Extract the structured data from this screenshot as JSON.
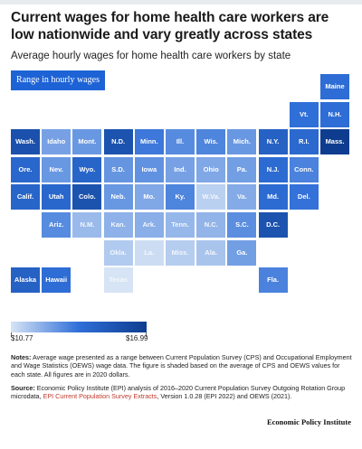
{
  "title": "Current wages for home health care workers are low nationwide and vary greatly across states",
  "subtitle": "Average hourly wages for home health care workers by state",
  "range_button_label": "Range in hourly wages",
  "chart_data": {
    "type": "heatmap",
    "legend": {
      "min_label": "$10.77",
      "max_label": "$16.99",
      "min": 10.77,
      "max": 16.99
    },
    "colors": {
      "low": "#d6e4f5",
      "mid": "#2f6fd8",
      "high": "#0e3d8f"
    },
    "states": [
      {
        "label": "Maine",
        "row": 0,
        "col": 10,
        "value": 14.6
      },
      {
        "label": "Vt.",
        "row": 1,
        "col": 9,
        "value": 14.5
      },
      {
        "label": "N.H.",
        "row": 1,
        "col": 10,
        "value": 14.6
      },
      {
        "label": "Wash.",
        "row": 2,
        "col": 0,
        "value": 16.0
      },
      {
        "label": "Idaho",
        "row": 2,
        "col": 1,
        "value": 12.9
      },
      {
        "label": "Mont.",
        "row": 2,
        "col": 2,
        "value": 13.2
      },
      {
        "label": "N.D.",
        "row": 2,
        "col": 3,
        "value": 15.9
      },
      {
        "label": "Minn.",
        "row": 2,
        "col": 4,
        "value": 14.2
      },
      {
        "label": "Ill.",
        "row": 2,
        "col": 5,
        "value": 13.6
      },
      {
        "label": "Wis.",
        "row": 2,
        "col": 6,
        "value": 13.8
      },
      {
        "label": "Mich.",
        "row": 2,
        "col": 7,
        "value": 13.2
      },
      {
        "label": "N.Y.",
        "row": 2,
        "col": 8,
        "value": 15.2
      },
      {
        "label": "R.I.",
        "row": 2,
        "col": 9,
        "value": 14.8
      },
      {
        "label": "Mass.",
        "row": 2,
        "col": 10,
        "value": 16.99
      },
      {
        "label": "Ore.",
        "row": 3,
        "col": 0,
        "value": 14.9
      },
      {
        "label": "Nev.",
        "row": 3,
        "col": 1,
        "value": 13.2
      },
      {
        "label": "Wyo.",
        "row": 3,
        "col": 2,
        "value": 15.0
      },
      {
        "label": "S.D.",
        "row": 3,
        "col": 3,
        "value": 13.3
      },
      {
        "label": "Iowa",
        "row": 3,
        "col": 4,
        "value": 13.4
      },
      {
        "label": "Ind.",
        "row": 3,
        "col": 5,
        "value": 12.9
      },
      {
        "label": "Ohio",
        "row": 3,
        "col": 6,
        "value": 12.7
      },
      {
        "label": "Pa.",
        "row": 3,
        "col": 7,
        "value": 13.0
      },
      {
        "label": "N.J.",
        "row": 3,
        "col": 8,
        "value": 14.7
      },
      {
        "label": "Conn.",
        "row": 3,
        "col": 9,
        "value": 13.9
      },
      {
        "label": "Calif.",
        "row": 4,
        "col": 0,
        "value": 15.0
      },
      {
        "label": "Utah",
        "row": 4,
        "col": 1,
        "value": 14.9
      },
      {
        "label": "Colo.",
        "row": 4,
        "col": 2,
        "value": 15.9
      },
      {
        "label": "Neb.",
        "row": 4,
        "col": 3,
        "value": 13.2
      },
      {
        "label": "Mo.",
        "row": 4,
        "col": 4,
        "value": 12.7
      },
      {
        "label": "Ky.",
        "row": 4,
        "col": 5,
        "value": 13.8
      },
      {
        "label": "W.Va.",
        "row": 4,
        "col": 6,
        "value": 11.4
      },
      {
        "label": "Va.",
        "row": 4,
        "col": 7,
        "value": 12.6
      },
      {
        "label": "Md.",
        "row": 4,
        "col": 8,
        "value": 14.7
      },
      {
        "label": "Del.",
        "row": 4,
        "col": 9,
        "value": 14.4
      },
      {
        "label": "Ariz.",
        "row": 5,
        "col": 1,
        "value": 13.6
      },
      {
        "label": "N.M.",
        "row": 5,
        "col": 2,
        "value": 12.1
      },
      {
        "label": "Kan.",
        "row": 5,
        "col": 3,
        "value": 12.4
      },
      {
        "label": "Ark.",
        "row": 5,
        "col": 4,
        "value": 12.5
      },
      {
        "label": "Tenn.",
        "row": 5,
        "col": 5,
        "value": 12.2
      },
      {
        "label": "N.C.",
        "row": 5,
        "col": 6,
        "value": 12.3
      },
      {
        "label": "S.C.",
        "row": 5,
        "col": 7,
        "value": 13.5
      },
      {
        "label": "D.C.",
        "row": 5,
        "col": 8,
        "value": 15.9
      },
      {
        "label": "Okla.",
        "row": 6,
        "col": 3,
        "value": 11.6
      },
      {
        "label": "La.",
        "row": 6,
        "col": 4,
        "value": 11.0
      },
      {
        "label": "Miss.",
        "row": 6,
        "col": 5,
        "value": 11.5
      },
      {
        "label": "Ala.",
        "row": 6,
        "col": 6,
        "value": 11.8
      },
      {
        "label": "Ga.",
        "row": 6,
        "col": 7,
        "value": 13.0
      },
      {
        "label": "Alaska",
        "row": 7,
        "col": 0,
        "value": 15.2
      },
      {
        "label": "Hawaii",
        "row": 7,
        "col": 1,
        "value": 14.6
      },
      {
        "label": "Texas",
        "row": 7,
        "col": 3,
        "value": 10.77
      },
      {
        "label": "Fla.",
        "row": 7,
        "col": 8,
        "value": 13.9
      }
    ]
  },
  "notes": {
    "notes_label": "Notes:",
    "notes_text": "Average wage presented as a range between Current Population Survey (CPS) and Occupational Employment and Wage Statistics (OEWS) wage data. The figure is shaded based on the average of CPS and OEWS values for each state. All figures are in 2020 dollars.",
    "source_label": "Source:",
    "source_text_1": "Economic Policy Institute (EPI) analysis of 2016–2020 Current Population Survey Outgoing Rotation Group microdata,",
    "source_link": "EPI Current Population Survey Extracts",
    "source_text_2": ", Version 1.0.28 (EPI 2022) and OEWS (2021)."
  },
  "brand": "Economic Policy Institute"
}
